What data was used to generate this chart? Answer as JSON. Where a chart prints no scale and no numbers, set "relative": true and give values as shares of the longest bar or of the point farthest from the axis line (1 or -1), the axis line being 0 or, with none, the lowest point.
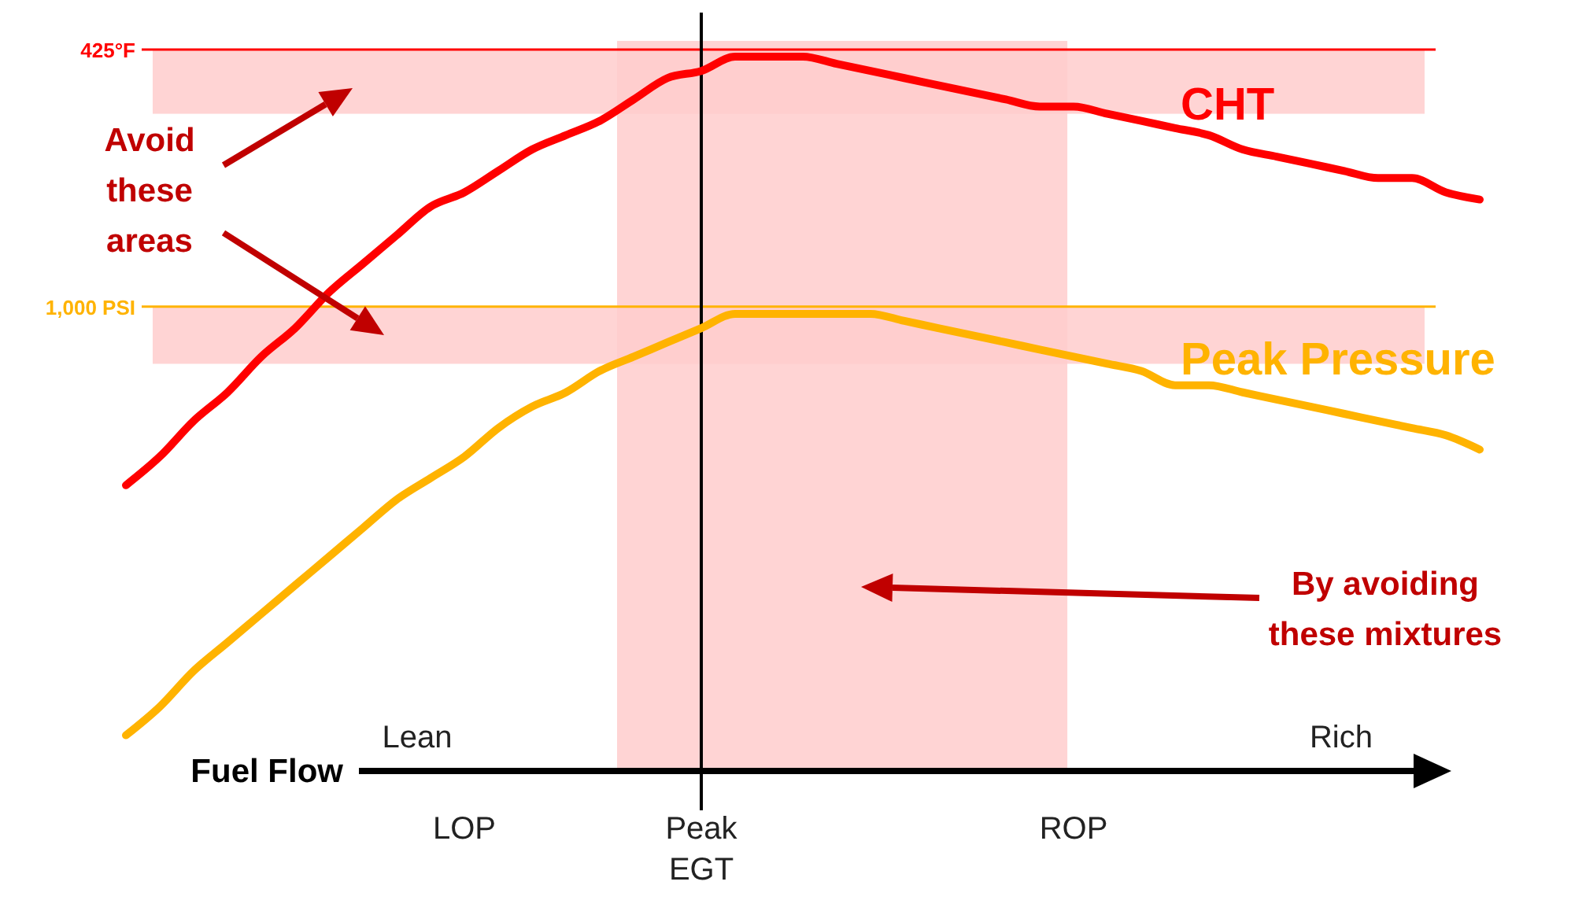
{
  "chart_data": {
    "type": "line",
    "relative": true,
    "xlabel": "Fuel Flow",
    "categories": [
      null,
      null,
      null,
      null,
      null,
      null,
      null,
      null,
      null,
      null,
      "LOP",
      null,
      null,
      null,
      null,
      null,
      null,
      "Peak EGT",
      null,
      null,
      null,
      null,
      null,
      null,
      null,
      null,
      null,
      null,
      "ROP",
      null,
      null,
      null,
      null,
      null,
      null,
      null,
      null,
      null,
      null,
      null,
      null
    ],
    "series": [
      {
        "name": "CHT",
        "color": "#ff0000",
        "values": [
          0.4,
          0.44,
          0.49,
          0.53,
          0.58,
          0.62,
          0.67,
          0.71,
          0.75,
          0.79,
          0.81,
          0.84,
          0.87,
          0.89,
          0.91,
          0.94,
          0.97,
          0.98,
          1.0,
          1.0,
          1.0,
          0.99,
          0.98,
          0.97,
          0.96,
          0.95,
          0.94,
          0.93,
          0.93,
          0.92,
          0.91,
          0.9,
          0.89,
          0.87,
          0.86,
          0.85,
          0.84,
          0.83,
          0.83,
          0.81,
          0.8
        ]
      },
      {
        "name": "Peak Pressure",
        "color": "#ffb300",
        "values": [
          0.05,
          0.09,
          0.14,
          0.18,
          0.22,
          0.26,
          0.3,
          0.34,
          0.38,
          0.41,
          0.44,
          0.48,
          0.51,
          0.53,
          0.56,
          0.58,
          0.6,
          0.62,
          0.64,
          0.64,
          0.64,
          0.64,
          0.64,
          0.63,
          0.62,
          0.61,
          0.6,
          0.59,
          0.58,
          0.57,
          0.56,
          0.54,
          0.54,
          0.53,
          0.52,
          0.51,
          0.5,
          0.49,
          0.48,
          0.47,
          0.45
        ]
      }
    ],
    "ref_lines": [
      {
        "axis": "y",
        "value": 1.01,
        "label": "425°F",
        "color": "#ff0000"
      },
      {
        "axis": "y",
        "value": 0.65,
        "label": "1,000 PSI",
        "color": "#ffb300"
      },
      {
        "axis": "x",
        "value": "Peak EGT",
        "label": null,
        "color": "#000000"
      }
    ],
    "bands": [
      {
        "axis": "y",
        "from": 0.92,
        "to": 1.01,
        "label": null,
        "color": "#ffcccc"
      },
      {
        "axis": "y",
        "from": 0.57,
        "to": 0.65,
        "label": null,
        "color": "#ffcccc"
      }
    ],
    "annotations": [
      "Avoid these areas",
      "By avoiding these mixtures",
      "Lean",
      "Rich"
    ],
    "legend": false,
    "marker": "none",
    "line_style": "solid"
  }
}
